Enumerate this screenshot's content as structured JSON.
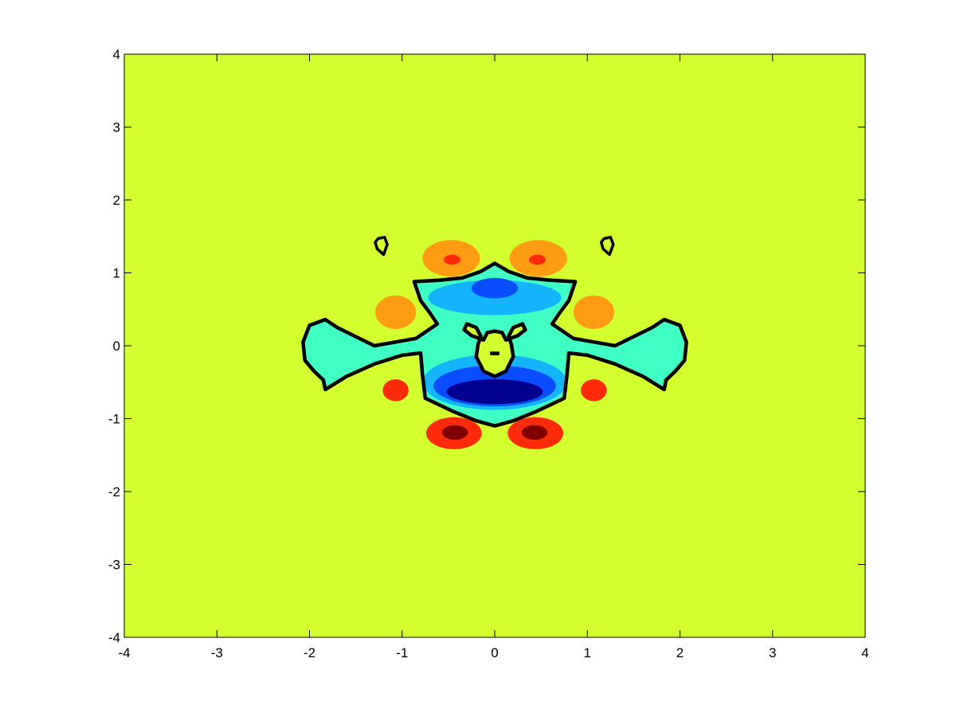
{
  "chart_data": {
    "type": "contour",
    "title": "",
    "xlabel": "",
    "ylabel": "",
    "xlim": [
      -4,
      4
    ],
    "ylim": [
      -4,
      4
    ],
    "xticks": [
      -4,
      -3,
      -2,
      -1,
      0,
      1,
      2,
      3,
      4
    ],
    "yticks": [
      -4,
      -3,
      -2,
      -1,
      0,
      1,
      2,
      3,
      4
    ],
    "xtick_labels": [
      "-4",
      "-3",
      "-2",
      "-1",
      "0",
      "1",
      "2",
      "3",
      "4"
    ],
    "ytick_labels": [
      "-4",
      "-3",
      "-2",
      "-1",
      "0",
      "1",
      "2",
      "3",
      "4"
    ],
    "grid": false,
    "legend": "none",
    "background_level_color": "#d4ff2e",
    "filled_regions": [
      {
        "name": "upper-left-orange-lobe",
        "color": "#ff9c14",
        "cx": -0.47,
        "cy": 1.2,
        "rx": 0.31,
        "ry": 0.25
      },
      {
        "name": "upper-left-red-core",
        "color": "#ff2a0a",
        "cx": -0.46,
        "cy": 1.18,
        "rx": 0.09,
        "ry": 0.07
      },
      {
        "name": "upper-right-orange-lobe",
        "color": "#ff9c14",
        "cx": 0.47,
        "cy": 1.2,
        "rx": 0.31,
        "ry": 0.25
      },
      {
        "name": "upper-right-red-core",
        "color": "#ff2a0a",
        "cx": 0.46,
        "cy": 1.18,
        "rx": 0.09,
        "ry": 0.07
      },
      {
        "name": "mid-left-orange-lobe",
        "color": "#ff9c14",
        "cx": -1.07,
        "cy": 0.46,
        "rx": 0.22,
        "ry": 0.23
      },
      {
        "name": "mid-right-orange-lobe",
        "color": "#ff9c14",
        "cx": 1.07,
        "cy": 0.46,
        "rx": 0.22,
        "ry": 0.23
      },
      {
        "name": "lower-left-red-spot",
        "color": "#ff2a0a",
        "cx": -1.07,
        "cy": -0.61,
        "rx": 0.14,
        "ry": 0.15
      },
      {
        "name": "lower-right-red-spot",
        "color": "#ff2a0a",
        "cx": 1.07,
        "cy": -0.61,
        "rx": 0.14,
        "ry": 0.15
      },
      {
        "name": "lower-left-red-lobe",
        "color": "#ff2a0a",
        "cx": -0.44,
        "cy": -1.2,
        "rx": 0.3,
        "ry": 0.22
      },
      {
        "name": "lower-left-darkred-core",
        "color": "#800000",
        "cx": -0.43,
        "cy": -1.19,
        "rx": 0.14,
        "ry": 0.1
      },
      {
        "name": "lower-right-red-lobe",
        "color": "#ff2a0a",
        "cx": 0.44,
        "cy": -1.2,
        "rx": 0.3,
        "ry": 0.22
      },
      {
        "name": "lower-right-darkred-core",
        "color": "#800000",
        "cx": 0.43,
        "cy": -1.19,
        "rx": 0.14,
        "ry": 0.1
      },
      {
        "name": "upper-lightblue-band",
        "color": "#14b4ff",
        "cx": 0.0,
        "cy": 0.66,
        "rx": 0.72,
        "ry": 0.24
      },
      {
        "name": "upper-blue-core",
        "color": "#0a4dff",
        "cx": 0.0,
        "cy": 0.79,
        "rx": 0.25,
        "ry": 0.14
      },
      {
        "name": "lower-lightblue-band",
        "color": "#14b4ff",
        "cx": 0.0,
        "cy": -0.5,
        "rx": 0.78,
        "ry": 0.38
      },
      {
        "name": "lower-blue-band",
        "color": "#0a4dff",
        "cx": 0.0,
        "cy": -0.55,
        "rx": 0.66,
        "ry": 0.28
      },
      {
        "name": "lower-navy-core",
        "color": "#000090",
        "cx": 0.0,
        "cy": -0.63,
        "rx": 0.52,
        "ry": 0.17
      }
    ],
    "colors": {
      "background": "#d4ff2e",
      "orange": "#ff9c14",
      "red": "#ff2a0a",
      "dark_red": "#800000",
      "cyan": "#40ffc4",
      "light_blue": "#14b4ff",
      "blue": "#0a4dff",
      "navy": "#000090",
      "contour_line": "#000000"
    }
  }
}
